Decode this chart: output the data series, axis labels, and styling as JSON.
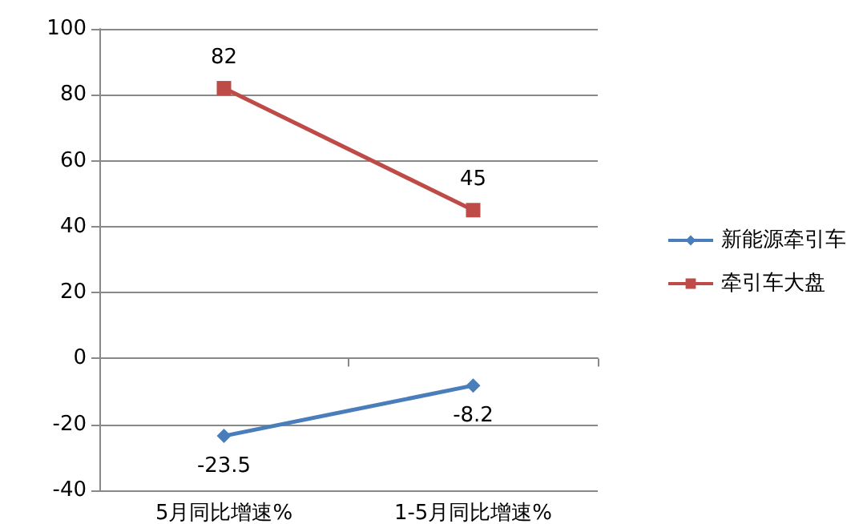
{
  "chart_data": {
    "type": "line",
    "categories": [
      "5月同比增速%",
      "1-5月同比增速%"
    ],
    "series": [
      {
        "name": "新能源牵引车",
        "color": "#4a7ebb",
        "values": [
          -23.5,
          -8.2
        ],
        "marker": "diamond"
      },
      {
        "name": "牵引车大盘",
        "color": "#be4b48",
        "values": [
          82,
          45
        ],
        "marker": "square"
      }
    ],
    "ylim": [
      -40,
      100
    ],
    "yticks": [
      -40,
      -20,
      0,
      20,
      40,
      60,
      80,
      100
    ],
    "grid": "y",
    "legend": "right",
    "data_labels": true
  }
}
